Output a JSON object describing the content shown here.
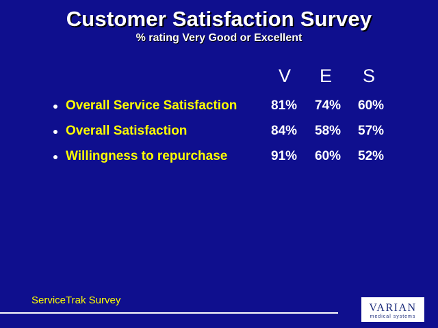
{
  "slide": {
    "title": "Customer Satisfaction Survey",
    "subtitle": "% rating Very Good or Excellent"
  },
  "table": {
    "columns": [
      "V",
      "E",
      "S"
    ],
    "rows": [
      {
        "label": "Overall Service Satisfaction",
        "values": [
          "81%",
          "74%",
          "60%"
        ]
      },
      {
        "label": "Overall Satisfaction",
        "values": [
          "84%",
          "58%",
          "57%"
        ]
      },
      {
        "label": "Willingness to repurchase",
        "values": [
          "91%",
          "60%",
          "52%"
        ]
      }
    ]
  },
  "footer": {
    "source": "ServiceTrak Survey"
  },
  "logo": {
    "name": "VARIAN",
    "tagline": "medical systems"
  },
  "colors": {
    "background": "#0f0f8e",
    "label": "#ffff00",
    "text": "#ffffff",
    "logo_text": "#1a2a7a"
  }
}
